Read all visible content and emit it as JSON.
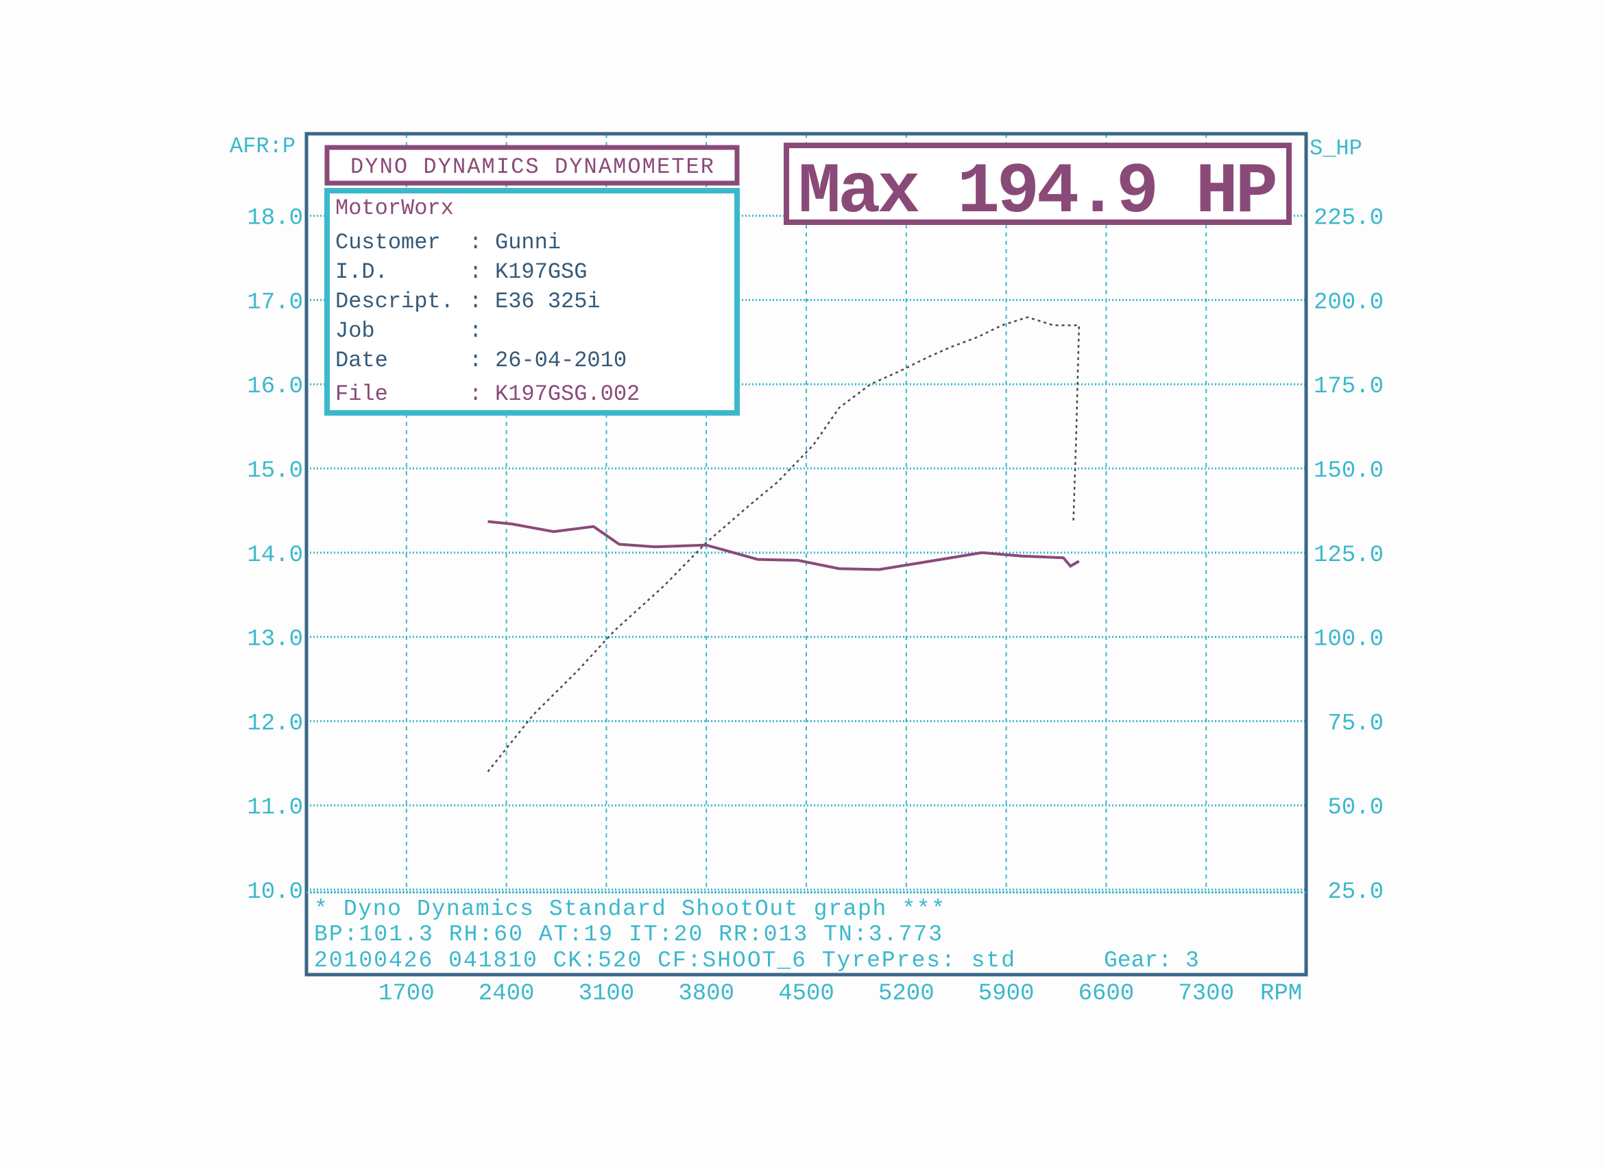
{
  "colors": {
    "grid": "#3bb8cc",
    "axis_text": "#3bb8cc",
    "frame": "#3a6688",
    "afr": "#8a4a78",
    "power": "#4a4a4a",
    "title": "#8a4a78"
  },
  "header": {
    "title": "DYNO DYNAMICS DYNAMOMETER",
    "max_label": "Max 194.9 HP"
  },
  "info": {
    "shop": "MotorWorx",
    "rows": [
      {
        "label": "Customer",
        "value": "Gunni"
      },
      {
        "label": "I.D.",
        "value": "K197GSG"
      },
      {
        "label": "Descript.",
        "value": "E36 325i"
      },
      {
        "label": "Job",
        "value": ""
      },
      {
        "label": "Date",
        "value": "26-04-2010"
      },
      {
        "label": "File",
        "value": "K197GSG.002"
      }
    ]
  },
  "footer": {
    "line1": "* Dyno Dynamics Standard ShootOut graph ***",
    "line2": "BP:101.3 RH:60 AT:19 IT:20  RR:013 TN:3.773",
    "line3": "20100426 041810 CK:520 CF:SHOOT_6  TyrePres: std",
    "gear": "Gear: 3"
  },
  "chart_data": {
    "type": "line",
    "xlabel": "RPM",
    "ylabel_left": "AFR:P",
    "ylabel_right": "S_HP",
    "xlim": [
      1000,
      8000
    ],
    "ylim_left": [
      10.0,
      19.0
    ],
    "ylim_right": [
      25.0,
      250.0
    ],
    "x_ticks": [
      "1700",
      "2400",
      "3100",
      "3800",
      "4500",
      "5200",
      "5900",
      "6600",
      "7300"
    ],
    "y_left_ticks": [
      "18.0",
      "17.0",
      "16.0",
      "15.0",
      "14.0",
      "13.0",
      "12.0",
      "11.0",
      "10.0"
    ],
    "y_right_ticks": [
      "225.0",
      "200.0",
      "175.0",
      "150.0",
      "125.0",
      "100.0",
      "75.0",
      "50.0",
      "25.0"
    ],
    "grid": true,
    "series": [
      {
        "axis": "right",
        "style": "dotted",
        "points": [
          [
            2270,
            60
          ],
          [
            2590,
            77
          ],
          [
            2900,
            90
          ],
          [
            3160,
            102
          ],
          [
            3500,
            115
          ],
          [
            3800,
            128
          ],
          [
            4100,
            139
          ],
          [
            4300,
            146
          ],
          [
            4550,
            157
          ],
          [
            4730,
            168
          ],
          [
            4950,
            175
          ],
          [
            5160,
            179
          ],
          [
            5350,
            183
          ],
          [
            5510,
            186
          ],
          [
            5700,
            189
          ],
          [
            5870,
            192.5
          ],
          [
            6050,
            194.9
          ],
          [
            6230,
            192.5
          ],
          [
            6410,
            192.5
          ],
          [
            6390,
            160
          ],
          [
            6370,
            134
          ]
        ]
      },
      {
        "axis": "left",
        "style": "solid",
        "points": [
          [
            2270,
            14.37
          ],
          [
            2440,
            14.34
          ],
          [
            2730,
            14.25
          ],
          [
            3010,
            14.31
          ],
          [
            3190,
            14.1
          ],
          [
            3440,
            14.07
          ],
          [
            3800,
            14.09
          ],
          [
            4160,
            13.92
          ],
          [
            4440,
            13.91
          ],
          [
            4730,
            13.81
          ],
          [
            5010,
            13.8
          ],
          [
            5300,
            13.88
          ],
          [
            5730,
            14.0
          ],
          [
            6010,
            13.96
          ],
          [
            6300,
            13.94
          ],
          [
            6350,
            13.84
          ],
          [
            6410,
            13.9
          ]
        ]
      }
    ]
  }
}
